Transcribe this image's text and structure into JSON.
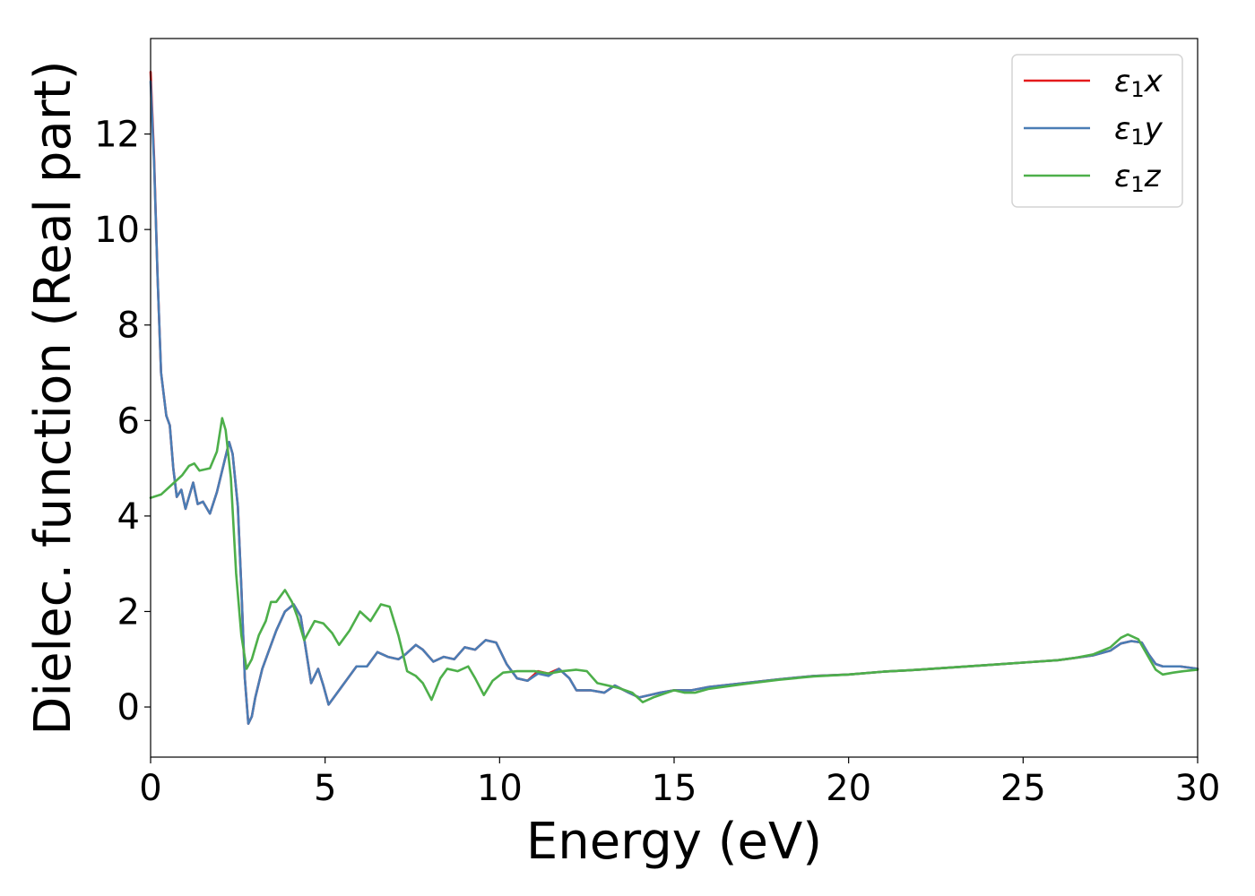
{
  "chart_data": {
    "type": "line",
    "xlabel": "Energy (eV)",
    "ylabel": "Dielec. function (Real part)",
    "xlim": [
      0,
      30
    ],
    "ylim": [
      -1.05,
      14.0
    ],
    "xticks": [
      0,
      5,
      10,
      15,
      20,
      25,
      30
    ],
    "yticks": [
      0,
      2,
      4,
      6,
      8,
      10,
      12
    ],
    "grid": false,
    "legend_position": "top-right",
    "series": [
      {
        "name": "ε₁x",
        "legend_main": "ε",
        "legend_sub": "1",
        "legend_tail": "x",
        "color": "#e41a1c",
        "points": [
          [
            0,
            13.3
          ],
          [
            0.1,
            11.5
          ],
          [
            0.2,
            9.0
          ],
          [
            0.3,
            7.0
          ],
          [
            0.45,
            6.1
          ],
          [
            0.55,
            5.9
          ],
          [
            0.65,
            5.0
          ],
          [
            0.75,
            4.4
          ],
          [
            0.88,
            4.55
          ],
          [
            1.0,
            4.15
          ],
          [
            1.1,
            4.4
          ],
          [
            1.22,
            4.7
          ],
          [
            1.35,
            4.25
          ],
          [
            1.5,
            4.3
          ],
          [
            1.7,
            4.05
          ],
          [
            1.9,
            4.5
          ],
          [
            2.1,
            5.1
          ],
          [
            2.25,
            5.55
          ],
          [
            2.35,
            5.3
          ],
          [
            2.5,
            4.2
          ],
          [
            2.6,
            2.5
          ],
          [
            2.7,
            0.6
          ],
          [
            2.8,
            -0.35
          ],
          [
            2.9,
            -0.2
          ],
          [
            3.0,
            0.2
          ],
          [
            3.2,
            0.8
          ],
          [
            3.4,
            1.2
          ],
          [
            3.6,
            1.6
          ],
          [
            3.85,
            2.0
          ],
          [
            4.1,
            2.15
          ],
          [
            4.3,
            1.9
          ],
          [
            4.45,
            1.2
          ],
          [
            4.6,
            0.5
          ],
          [
            4.8,
            0.8
          ],
          [
            4.95,
            0.45
          ],
          [
            5.1,
            0.05
          ],
          [
            5.3,
            0.25
          ],
          [
            5.6,
            0.55
          ],
          [
            5.9,
            0.85
          ],
          [
            6.2,
            0.85
          ],
          [
            6.5,
            1.15
          ],
          [
            6.8,
            1.05
          ],
          [
            7.1,
            1.0
          ],
          [
            7.3,
            1.1
          ],
          [
            7.6,
            1.3
          ],
          [
            7.8,
            1.2
          ],
          [
            8.1,
            0.95
          ],
          [
            8.4,
            1.05
          ],
          [
            8.7,
            1.0
          ],
          [
            9.0,
            1.25
          ],
          [
            9.3,
            1.2
          ],
          [
            9.6,
            1.4
          ],
          [
            9.9,
            1.35
          ],
          [
            10.2,
            0.9
          ],
          [
            10.5,
            0.6
          ],
          [
            10.8,
            0.55
          ],
          [
            11.1,
            0.75
          ],
          [
            11.4,
            0.7
          ],
          [
            11.7,
            0.8
          ],
          [
            12.0,
            0.6
          ],
          [
            12.2,
            0.35
          ],
          [
            12.6,
            0.35
          ],
          [
            13.0,
            0.3
          ],
          [
            13.3,
            0.45
          ],
          [
            13.7,
            0.3
          ],
          [
            14.0,
            0.2
          ],
          [
            14.3,
            0.25
          ],
          [
            14.6,
            0.3
          ],
          [
            15.0,
            0.35
          ],
          [
            15.5,
            0.35
          ],
          [
            16.0,
            0.42
          ],
          [
            17.0,
            0.5
          ],
          [
            18.0,
            0.58
          ],
          [
            19.0,
            0.65
          ],
          [
            20.0,
            0.68
          ],
          [
            21.0,
            0.74
          ],
          [
            22.0,
            0.78
          ],
          [
            23.0,
            0.83
          ],
          [
            24.0,
            0.88
          ],
          [
            25.0,
            0.93
          ],
          [
            26.0,
            0.98
          ],
          [
            26.5,
            1.03
          ],
          [
            27.0,
            1.08
          ],
          [
            27.5,
            1.18
          ],
          [
            27.8,
            1.33
          ],
          [
            28.1,
            1.38
          ],
          [
            28.4,
            1.35
          ],
          [
            28.6,
            1.1
          ],
          [
            28.8,
            0.9
          ],
          [
            29.0,
            0.85
          ],
          [
            29.5,
            0.85
          ],
          [
            30.0,
            0.8
          ]
        ]
      },
      {
        "name": "ε₁y",
        "legend_main": "ε",
        "legend_sub": "1",
        "legend_tail": "y",
        "color": "#4a7db5",
        "points": [
          [
            0,
            13.1
          ],
          [
            0.1,
            11.4
          ],
          [
            0.2,
            9.0
          ],
          [
            0.3,
            7.0
          ],
          [
            0.45,
            6.1
          ],
          [
            0.55,
            5.9
          ],
          [
            0.65,
            5.0
          ],
          [
            0.75,
            4.4
          ],
          [
            0.88,
            4.55
          ],
          [
            1.0,
            4.15
          ],
          [
            1.1,
            4.4
          ],
          [
            1.22,
            4.7
          ],
          [
            1.35,
            4.25
          ],
          [
            1.5,
            4.3
          ],
          [
            1.7,
            4.05
          ],
          [
            1.9,
            4.5
          ],
          [
            2.1,
            5.1
          ],
          [
            2.25,
            5.55
          ],
          [
            2.35,
            5.3
          ],
          [
            2.5,
            4.2
          ],
          [
            2.6,
            2.5
          ],
          [
            2.7,
            0.6
          ],
          [
            2.8,
            -0.35
          ],
          [
            2.9,
            -0.2
          ],
          [
            3.0,
            0.2
          ],
          [
            3.2,
            0.8
          ],
          [
            3.4,
            1.2
          ],
          [
            3.6,
            1.6
          ],
          [
            3.85,
            2.0
          ],
          [
            4.1,
            2.15
          ],
          [
            4.3,
            1.9
          ],
          [
            4.45,
            1.2
          ],
          [
            4.6,
            0.5
          ],
          [
            4.8,
            0.8
          ],
          [
            4.95,
            0.45
          ],
          [
            5.1,
            0.05
          ],
          [
            5.3,
            0.25
          ],
          [
            5.6,
            0.55
          ],
          [
            5.9,
            0.85
          ],
          [
            6.2,
            0.85
          ],
          [
            6.5,
            1.15
          ],
          [
            6.8,
            1.05
          ],
          [
            7.1,
            1.0
          ],
          [
            7.3,
            1.1
          ],
          [
            7.6,
            1.3
          ],
          [
            7.8,
            1.2
          ],
          [
            8.1,
            0.95
          ],
          [
            8.4,
            1.05
          ],
          [
            8.7,
            1.0
          ],
          [
            9.0,
            1.25
          ],
          [
            9.3,
            1.2
          ],
          [
            9.6,
            1.4
          ],
          [
            9.9,
            1.35
          ],
          [
            10.2,
            0.9
          ],
          [
            10.5,
            0.6
          ],
          [
            10.8,
            0.55
          ],
          [
            11.1,
            0.7
          ],
          [
            11.4,
            0.65
          ],
          [
            11.7,
            0.8
          ],
          [
            12.0,
            0.6
          ],
          [
            12.2,
            0.35
          ],
          [
            12.6,
            0.35
          ],
          [
            13.0,
            0.3
          ],
          [
            13.3,
            0.45
          ],
          [
            13.7,
            0.3
          ],
          [
            14.0,
            0.2
          ],
          [
            14.3,
            0.25
          ],
          [
            14.6,
            0.3
          ],
          [
            15.0,
            0.35
          ],
          [
            15.5,
            0.35
          ],
          [
            16.0,
            0.42
          ],
          [
            17.0,
            0.5
          ],
          [
            18.0,
            0.58
          ],
          [
            19.0,
            0.65
          ],
          [
            20.0,
            0.68
          ],
          [
            21.0,
            0.74
          ],
          [
            22.0,
            0.78
          ],
          [
            23.0,
            0.83
          ],
          [
            24.0,
            0.88
          ],
          [
            25.0,
            0.93
          ],
          [
            26.0,
            0.98
          ],
          [
            26.5,
            1.03
          ],
          [
            27.0,
            1.08
          ],
          [
            27.5,
            1.18
          ],
          [
            27.8,
            1.33
          ],
          [
            28.1,
            1.38
          ],
          [
            28.4,
            1.35
          ],
          [
            28.6,
            1.1
          ],
          [
            28.8,
            0.9
          ],
          [
            29.0,
            0.85
          ],
          [
            29.5,
            0.85
          ],
          [
            30.0,
            0.8
          ]
        ]
      },
      {
        "name": "ε₁z",
        "legend_main": "ε",
        "legend_sub": "1",
        "legend_tail": "z",
        "color": "#4daf4a",
        "points": [
          [
            0,
            4.38
          ],
          [
            0.3,
            4.45
          ],
          [
            0.6,
            4.65
          ],
          [
            0.9,
            4.85
          ],
          [
            1.1,
            5.05
          ],
          [
            1.25,
            5.1
          ],
          [
            1.4,
            4.95
          ],
          [
            1.7,
            5.0
          ],
          [
            1.9,
            5.35
          ],
          [
            2.05,
            6.05
          ],
          [
            2.15,
            5.8
          ],
          [
            2.3,
            4.8
          ],
          [
            2.45,
            2.8
          ],
          [
            2.6,
            1.5
          ],
          [
            2.75,
            0.8
          ],
          [
            2.9,
            1.0
          ],
          [
            3.1,
            1.5
          ],
          [
            3.3,
            1.8
          ],
          [
            3.45,
            2.2
          ],
          [
            3.6,
            2.2
          ],
          [
            3.85,
            2.45
          ],
          [
            4.05,
            2.2
          ],
          [
            4.2,
            1.9
          ],
          [
            4.4,
            1.4
          ],
          [
            4.7,
            1.8
          ],
          [
            4.95,
            1.75
          ],
          [
            5.2,
            1.55
          ],
          [
            5.4,
            1.3
          ],
          [
            5.7,
            1.6
          ],
          [
            6.0,
            2.0
          ],
          [
            6.3,
            1.8
          ],
          [
            6.6,
            2.15
          ],
          [
            6.85,
            2.1
          ],
          [
            7.1,
            1.5
          ],
          [
            7.35,
            0.75
          ],
          [
            7.6,
            0.65
          ],
          [
            7.8,
            0.5
          ],
          [
            8.05,
            0.15
          ],
          [
            8.3,
            0.6
          ],
          [
            8.5,
            0.8
          ],
          [
            8.8,
            0.75
          ],
          [
            9.1,
            0.85
          ],
          [
            9.3,
            0.6
          ],
          [
            9.55,
            0.25
          ],
          [
            9.8,
            0.55
          ],
          [
            10.1,
            0.72
          ],
          [
            10.5,
            0.75
          ],
          [
            11.0,
            0.75
          ],
          [
            11.4,
            0.7
          ],
          [
            11.8,
            0.75
          ],
          [
            12.2,
            0.78
          ],
          [
            12.5,
            0.75
          ],
          [
            12.8,
            0.5
          ],
          [
            13.1,
            0.45
          ],
          [
            13.4,
            0.4
          ],
          [
            13.8,
            0.3
          ],
          [
            14.1,
            0.1
          ],
          [
            14.4,
            0.2
          ],
          [
            14.8,
            0.3
          ],
          [
            15.0,
            0.35
          ],
          [
            15.3,
            0.3
          ],
          [
            15.6,
            0.3
          ],
          [
            16.0,
            0.38
          ],
          [
            17.0,
            0.48
          ],
          [
            18.0,
            0.57
          ],
          [
            19.0,
            0.64
          ],
          [
            20.0,
            0.68
          ],
          [
            21.0,
            0.74
          ],
          [
            22.0,
            0.78
          ],
          [
            23.0,
            0.83
          ],
          [
            24.0,
            0.88
          ],
          [
            25.0,
            0.93
          ],
          [
            26.0,
            0.98
          ],
          [
            26.5,
            1.03
          ],
          [
            27.0,
            1.1
          ],
          [
            27.5,
            1.25
          ],
          [
            27.8,
            1.45
          ],
          [
            28.0,
            1.52
          ],
          [
            28.3,
            1.42
          ],
          [
            28.55,
            1.1
          ],
          [
            28.8,
            0.78
          ],
          [
            29.0,
            0.68
          ],
          [
            29.3,
            0.72
          ],
          [
            29.6,
            0.75
          ],
          [
            30.0,
            0.78
          ]
        ]
      }
    ]
  }
}
